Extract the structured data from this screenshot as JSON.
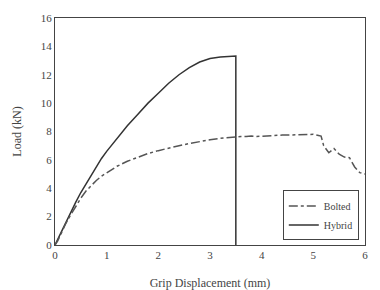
{
  "chart_data": {
    "type": "line",
    "xlabel": "Grip Displacement (mm)",
    "ylabel": "Load (kN)",
    "xlim": [
      0,
      6
    ],
    "ylim": [
      0,
      16
    ],
    "xticks": [
      0,
      1,
      2,
      3,
      4,
      5,
      6
    ],
    "yticks": [
      0,
      2,
      4,
      6,
      8,
      10,
      12,
      14,
      16
    ],
    "grid": false,
    "legend": "lower right",
    "series": [
      {
        "name": "Hybrid",
        "color": "#333333",
        "line_style": "solid",
        "x": [
          0,
          0.02,
          0.05,
          0.1,
          0.15,
          0.2,
          0.3,
          0.4,
          0.5,
          0.6,
          0.7,
          0.8,
          0.9,
          1.0,
          1.2,
          1.4,
          1.6,
          1.8,
          2.0,
          2.2,
          2.4,
          2.6,
          2.8,
          3.0,
          3.2,
          3.4,
          3.48,
          3.5,
          3.5,
          3.51
        ],
        "values": [
          0,
          0.15,
          0.35,
          0.75,
          1.2,
          1.6,
          2.3,
          3.0,
          3.7,
          4.3,
          5.0,
          5.6,
          6.1,
          6.6,
          7.5,
          8.4,
          9.2,
          10.0,
          10.7,
          11.4,
          12.0,
          12.5,
          12.9,
          13.15,
          13.25,
          13.3,
          13.32,
          13.32,
          0.0,
          0.0
        ]
      },
      {
        "name": "Bolted",
        "color": "#555555",
        "line_style": "dashdot",
        "x": [
          0,
          0.02,
          0.05,
          0.1,
          0.15,
          0.2,
          0.3,
          0.4,
          0.5,
          0.6,
          0.7,
          0.8,
          0.9,
          1.0,
          1.2,
          1.4,
          1.6,
          1.8,
          2.0,
          2.2,
          2.4,
          2.6,
          2.8,
          3.0,
          3.2,
          3.4,
          3.6,
          3.7,
          3.8,
          3.9,
          4.0,
          4.2,
          4.4,
          4.6,
          4.7,
          4.8,
          4.9,
          5.0,
          5.1,
          5.15,
          5.2,
          5.3,
          5.4,
          5.5,
          5.6,
          5.7,
          5.8,
          5.9,
          6.0
        ],
        "values": [
          0,
          0.1,
          0.28,
          0.65,
          1.05,
          1.45,
          2.1,
          2.75,
          3.3,
          3.8,
          4.2,
          4.55,
          4.85,
          5.1,
          5.55,
          5.9,
          6.2,
          6.45,
          6.65,
          6.85,
          7.0,
          7.15,
          7.3,
          7.42,
          7.52,
          7.6,
          7.65,
          7.65,
          7.68,
          7.65,
          7.68,
          7.72,
          7.75,
          7.76,
          7.78,
          7.8,
          7.8,
          7.8,
          7.72,
          7.68,
          7.0,
          6.5,
          6.8,
          6.4,
          6.2,
          6.15,
          5.5,
          5.1,
          5.0
        ]
      }
    ]
  }
}
